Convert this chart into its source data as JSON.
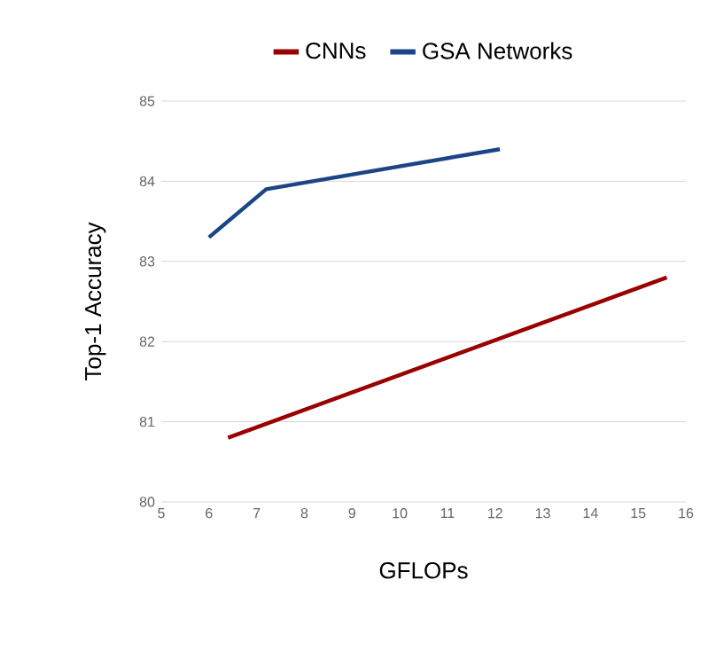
{
  "chart_data": {
    "type": "line",
    "xlabel": "GFLOPs",
    "ylabel": "Top-1 Accuracy",
    "series": [
      {
        "name": "CNNs",
        "color": "#990000",
        "x": [
          6.4,
          15.6
        ],
        "values": [
          80.8,
          82.8
        ]
      },
      {
        "name": "GSA Networks",
        "color": "#1c4587",
        "x": [
          6.0,
          7.2,
          12.1
        ],
        "values": [
          83.3,
          83.9,
          84.4
        ]
      }
    ],
    "xlim": [
      5,
      16
    ],
    "ylim": [
      80,
      85
    ],
    "xticks": [
      5,
      6,
      7,
      8,
      9,
      10,
      11,
      12,
      13,
      14,
      15,
      16
    ],
    "yticks": [
      80,
      81,
      82,
      83,
      84,
      85
    ],
    "grid": "y",
    "legend": "top",
    "marker": "none",
    "line_style": "solid"
  }
}
